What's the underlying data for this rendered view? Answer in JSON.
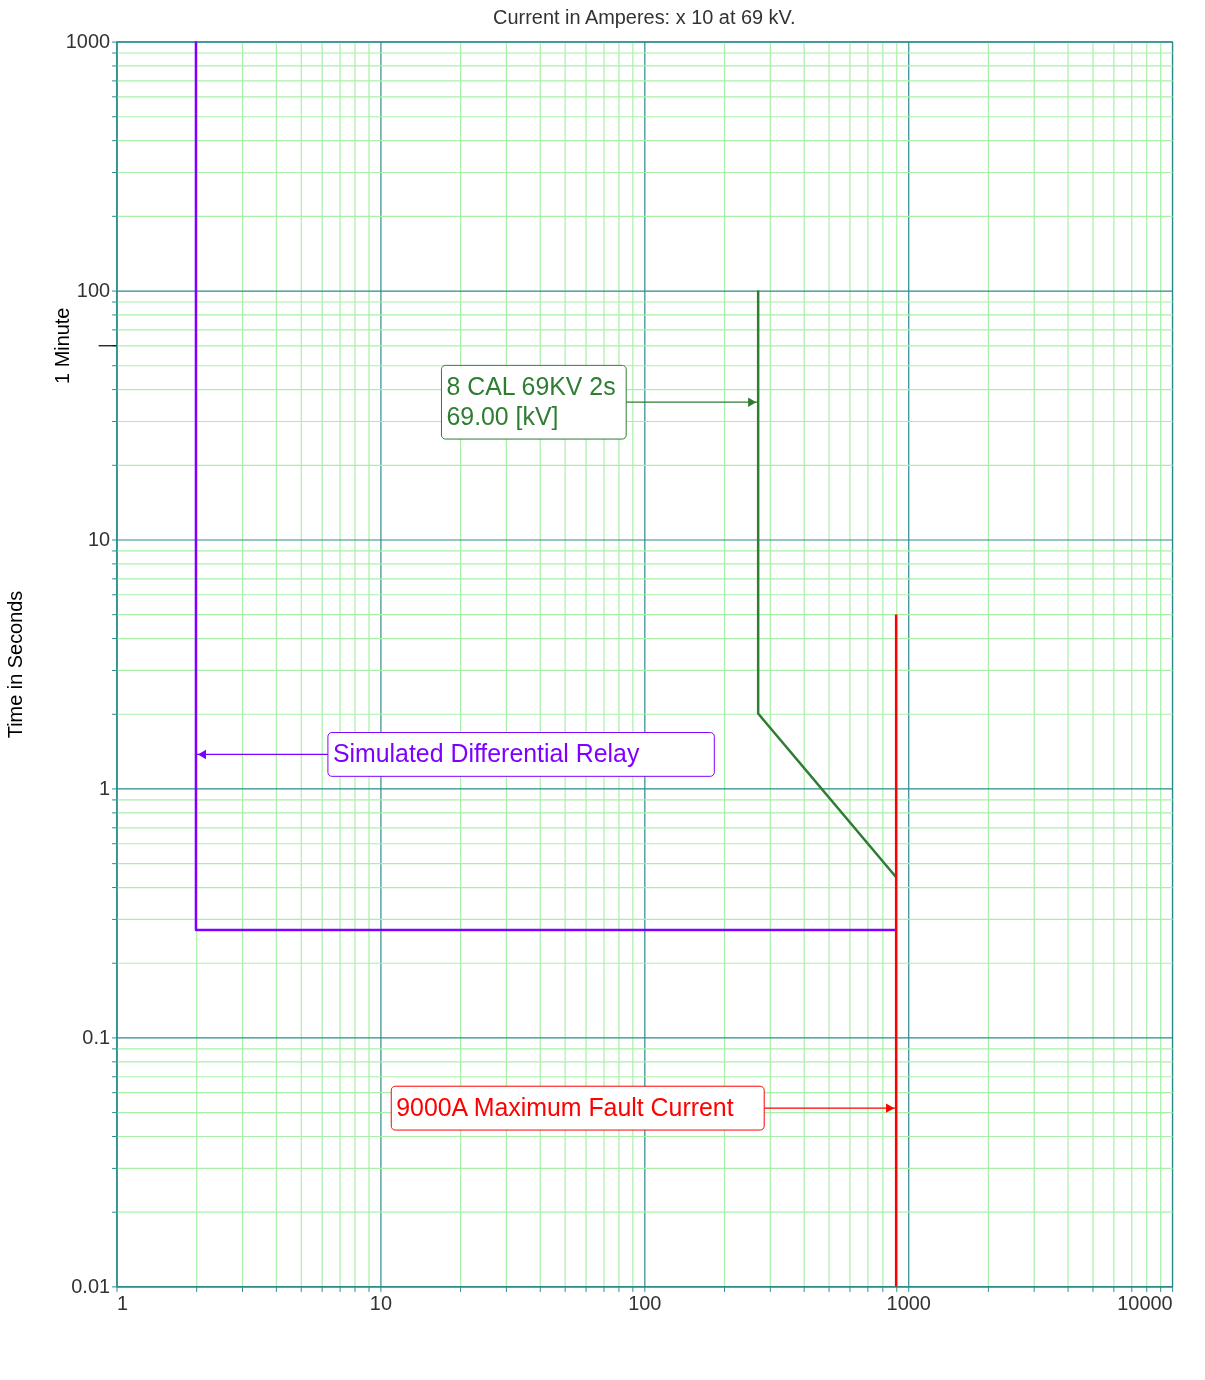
{
  "chart_data": {
    "type": "line",
    "title": "Current in Amperes: x 10 at 69 kV.",
    "ylabel": "Time in Seconds",
    "log": "xy",
    "grid": true,
    "marker": "none",
    "line_style": "solid",
    "xlim": [
      1,
      10000
    ],
    "xticks": [
      1,
      {
        "value": 2,
        "label": null
      },
      {
        "value": 3,
        "label": null
      },
      {
        "value": 4,
        "label": null
      },
      {
        "value": 5,
        "label": null
      },
      {
        "value": 6,
        "label": null
      },
      {
        "value": 7,
        "label": null
      },
      {
        "value": 8,
        "label": null
      },
      {
        "value": 9,
        "label": null
      },
      10,
      {
        "value": 20,
        "label": null
      },
      {
        "value": 30,
        "label": null
      },
      {
        "value": 40,
        "label": null
      },
      {
        "value": 50,
        "label": null
      },
      {
        "value": 60,
        "label": null
      },
      {
        "value": 70,
        "label": null
      },
      {
        "value": 80,
        "label": null
      },
      {
        "value": 90,
        "label": null
      },
      100,
      {
        "value": 200,
        "label": null
      },
      {
        "value": 300,
        "label": null
      },
      {
        "value": 400,
        "label": null
      },
      {
        "value": 500,
        "label": null
      },
      {
        "value": 600,
        "label": null
      },
      {
        "value": 700,
        "label": null
      },
      {
        "value": 800,
        "label": null
      },
      {
        "value": 900,
        "label": null
      },
      1000,
      {
        "value": 2000,
        "label": null
      },
      {
        "value": 3000,
        "label": null
      },
      {
        "value": 4000,
        "label": null
      },
      {
        "value": 5000,
        "label": null
      },
      {
        "value": 6000,
        "label": null
      },
      {
        "value": 7000,
        "label": null
      },
      {
        "value": 8000,
        "label": null
      },
      {
        "value": 9000,
        "label": null
      },
      10000
    ],
    "ylim": [
      0.01,
      1000
    ],
    "yticks": [
      0.01,
      {
        "value": 0.02,
        "label": null
      },
      {
        "value": 0.03,
        "label": null
      },
      {
        "value": 0.04,
        "label": null
      },
      {
        "value": 0.05,
        "label": null
      },
      {
        "value": 0.06,
        "label": null
      },
      {
        "value": 0.07,
        "label": null
      },
      {
        "value": 0.08,
        "label": null
      },
      {
        "value": 0.09,
        "label": null
      },
      0.1,
      {
        "value": 0.2,
        "label": null
      },
      {
        "value": 0.3,
        "label": null
      },
      {
        "value": 0.4,
        "label": null
      },
      {
        "value": 0.5,
        "label": null
      },
      {
        "value": 0.6,
        "label": null
      },
      {
        "value": 0.7,
        "label": null
      },
      {
        "value": 0.8,
        "label": null
      },
      {
        "value": 0.9,
        "label": null
      },
      1,
      {
        "value": 2,
        "label": null
      },
      {
        "value": 3,
        "label": null
      },
      {
        "value": 4,
        "label": null
      },
      {
        "value": 5,
        "label": null
      },
      {
        "value": 6,
        "label": null
      },
      {
        "value": 7,
        "label": null
      },
      {
        "value": 8,
        "label": null
      },
      {
        "value": 9,
        "label": null
      },
      10,
      {
        "value": 20,
        "label": null
      },
      {
        "value": 30,
        "label": null
      },
      {
        "value": 40,
        "label": null
      },
      {
        "value": 50,
        "label": null
      },
      {
        "value": 60,
        "label": null
      },
      {
        "value": 70,
        "label": null
      },
      {
        "value": 80,
        "label": null
      },
      {
        "value": 90,
        "label": null
      },
      100,
      {
        "value": 200,
        "label": null
      },
      {
        "value": 300,
        "label": null
      },
      {
        "value": 400,
        "label": null
      },
      {
        "value": 500,
        "label": null
      },
      {
        "value": 600,
        "label": null
      },
      {
        "value": 700,
        "label": null
      },
      {
        "value": 800,
        "label": null
      },
      {
        "value": 900,
        "label": null
      },
      1000
    ],
    "series": [
      {
        "color": "#8000ff",
        "x": [
          2,
          2,
          900
        ],
        "values": [
          1000,
          0.27,
          0.27
        ]
      },
      {
        "color": "#2e7d32",
        "x": [
          270,
          270,
          900
        ],
        "values": [
          100,
          2,
          0.44
        ]
      },
      {
        "color": "#ff0000",
        "x": [
          900,
          900
        ],
        "values": [
          5,
          0.01
        ]
      }
    ],
    "ref_lines": [
      {
        "axis": "y",
        "value": 60,
        "label": "1 Minute",
        "color": "#000000"
      }
    ],
    "annotations": [
      {
        "text": "Simulated Differential Relay",
        "x": 2,
        "y": 1.37
      },
      {
        "text": "8 CAL 69KV 2s\n69.00 [kV]",
        "x": 270,
        "y": 35.6
      },
      {
        "text": "9000A Maximum Fault Current",
        "x": 900,
        "y": 0.052
      }
    ]
  }
}
